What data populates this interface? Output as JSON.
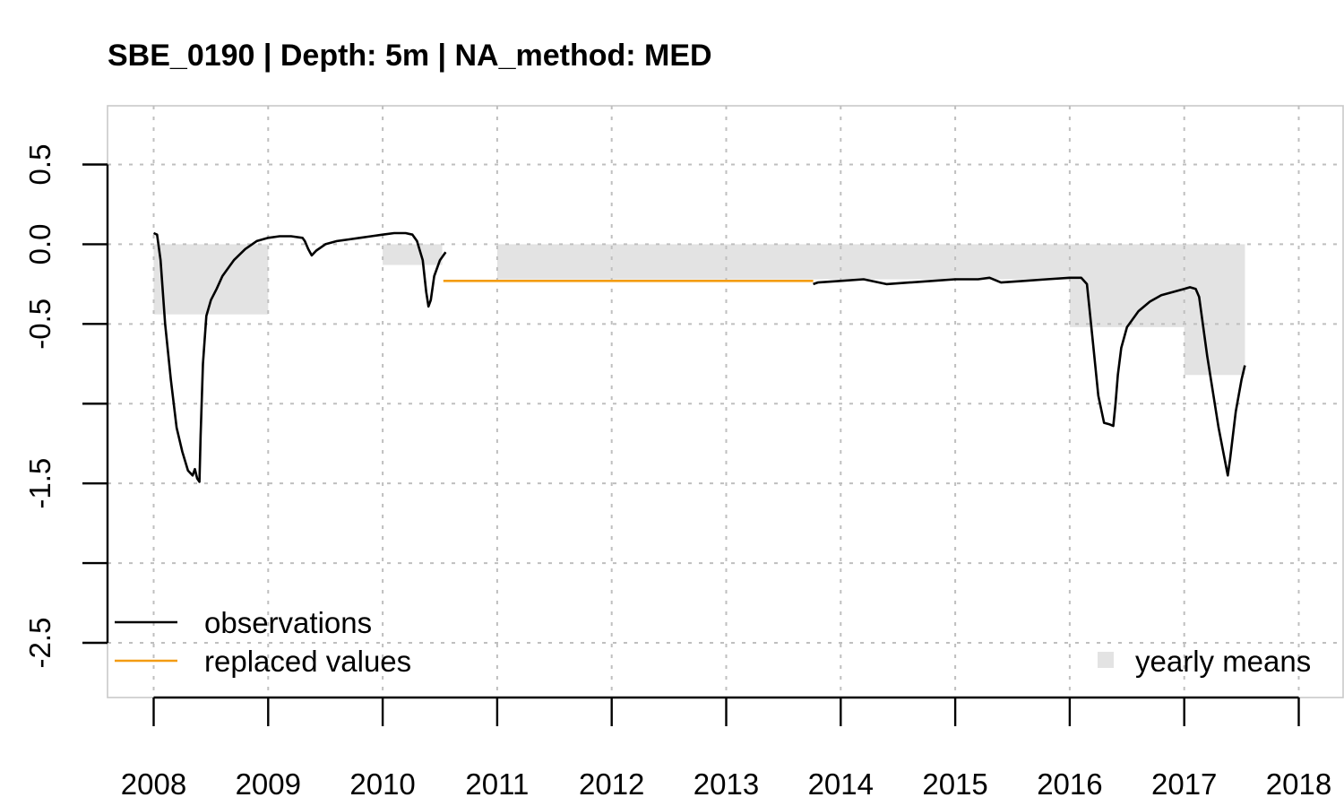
{
  "chart_data": {
    "type": "line",
    "title": "SBE_0190 | Depth: 5m | NA_method: MED",
    "xlabel": "",
    "ylabel": "",
    "xlim": [
      2008,
      2018
    ],
    "ylim": [
      -2.7,
      0.85
    ],
    "grid": true,
    "x_ticks": [
      2008,
      2009,
      2010,
      2011,
      2012,
      2013,
      2014,
      2015,
      2016,
      2017,
      2018
    ],
    "x_tick_labels": [
      "2008",
      "2009",
      "2010",
      "2011",
      "2012",
      "2013",
      "2014",
      "2015",
      "2016",
      "2017",
      "2018"
    ],
    "y_ticks": [
      0.5,
      0.0,
      -0.5,
      -1.0,
      -1.5,
      -2.0,
      -2.5
    ],
    "y_tick_labels": [
      "0.5",
      "0.0",
      "-0.5",
      "",
      "-1.5",
      "",
      "-2.5"
    ],
    "colors": {
      "observations": "#000000",
      "replaced": "#f39c12",
      "yearly_means": "#e3e3e3",
      "grid": "#bfbfbf"
    },
    "legend": {
      "left_placement": "bottom-left",
      "right_placement": "bottom-right",
      "entries": [
        {
          "label": "observations",
          "symbol": "line",
          "color": "#000000"
        },
        {
          "label": "replaced values",
          "symbol": "line",
          "color": "#f39c12"
        },
        {
          "label": "yearly means",
          "symbol": "square",
          "color": "#e3e3e3"
        }
      ]
    },
    "yearly_means": [
      {
        "year": 2008,
        "value": -0.44
      },
      {
        "year": 2009,
        "value": 0.0
      },
      {
        "year": 2010,
        "value": -0.13
      },
      {
        "year": 2011,
        "value": -0.22
      },
      {
        "year": 2012,
        "value": -0.22
      },
      {
        "year": 2013,
        "value": -0.22
      },
      {
        "year": 2014,
        "value": -0.22
      },
      {
        "year": 2015,
        "value": -0.22
      },
      {
        "year": 2016,
        "value": -0.52
      },
      {
        "year": 2017,
        "value": -0.82
      }
    ],
    "partial_means": [
      {
        "x_start": 2010.52,
        "x_end": 2011.0,
        "value": -0.14
      }
    ],
    "series": [
      {
        "name": "observations",
        "segment": 1,
        "x": [
          2008.0,
          2008.03,
          2008.06,
          2008.1,
          2008.15,
          2008.2,
          2008.25,
          2008.3,
          2008.34,
          2008.36,
          2008.38,
          2008.4,
          2008.41,
          2008.43,
          2008.46,
          2008.5,
          2008.55,
          2008.6,
          2008.7,
          2008.8,
          2008.9,
          2009.0,
          2009.1,
          2009.2,
          2009.3,
          2009.32,
          2009.35,
          2009.38,
          2009.42,
          2009.5,
          2009.6,
          2009.7,
          2009.8,
          2009.9,
          2010.0,
          2010.1,
          2010.2,
          2010.26,
          2010.3,
          2010.35,
          2010.38,
          2010.4,
          2010.42,
          2010.45,
          2010.5,
          2010.55
        ],
        "values": [
          0.07,
          0.06,
          -0.1,
          -0.5,
          -0.85,
          -1.15,
          -1.3,
          -1.42,
          -1.45,
          -1.41,
          -1.47,
          -1.49,
          -1.2,
          -0.75,
          -0.45,
          -0.35,
          -0.28,
          -0.2,
          -0.1,
          -0.03,
          0.02,
          0.04,
          0.05,
          0.05,
          0.04,
          0.02,
          -0.03,
          -0.07,
          -0.04,
          0.0,
          0.02,
          0.03,
          0.04,
          0.05,
          0.06,
          0.07,
          0.07,
          0.06,
          0.02,
          -0.1,
          -0.3,
          -0.39,
          -0.35,
          -0.2,
          -0.1,
          -0.05
        ]
      },
      {
        "name": "replaced values",
        "x": [
          2010.53,
          2013.76
        ],
        "values": [
          -0.23,
          -0.23
        ]
      },
      {
        "name": "observations",
        "segment": 2,
        "x": [
          2013.76,
          2013.8,
          2014.0,
          2014.2,
          2014.4,
          2014.6,
          2014.8,
          2015.0,
          2015.2,
          2015.3,
          2015.4,
          2015.6,
          2015.8,
          2016.0,
          2016.1,
          2016.15,
          2016.2,
          2016.25,
          2016.3,
          2016.35,
          2016.38,
          2016.4,
          2016.42,
          2016.45,
          2016.5,
          2016.6,
          2016.7,
          2016.8,
          2016.9,
          2017.0,
          2017.05,
          2017.1,
          2017.13,
          2017.2,
          2017.3,
          2017.38,
          2017.4,
          2017.45,
          2017.5,
          2017.53
        ],
        "values": [
          -0.25,
          -0.24,
          -0.23,
          -0.22,
          -0.25,
          -0.24,
          -0.23,
          -0.22,
          -0.22,
          -0.21,
          -0.24,
          -0.23,
          -0.22,
          -0.21,
          -0.21,
          -0.25,
          -0.6,
          -0.95,
          -1.12,
          -1.13,
          -1.14,
          -1.0,
          -0.82,
          -0.65,
          -0.52,
          -0.42,
          -0.36,
          -0.32,
          -0.3,
          -0.28,
          -0.27,
          -0.28,
          -0.33,
          -0.7,
          -1.15,
          -1.45,
          -1.35,
          -1.05,
          -0.85,
          -0.76
        ]
      }
    ]
  }
}
